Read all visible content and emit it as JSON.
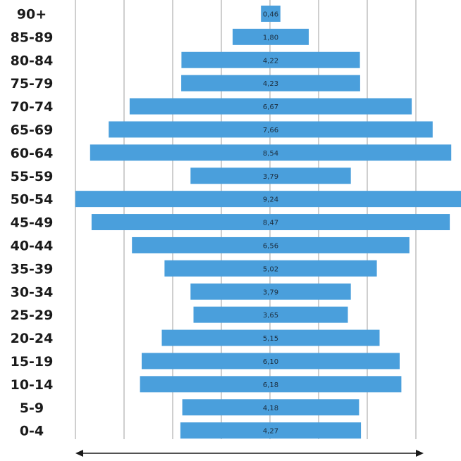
{
  "chart_data": {
    "type": "bar",
    "orientation": "horizontal-centered",
    "categories": [
      "90+",
      "85-89",
      "80-84",
      "75-79",
      "70-74",
      "65-69",
      "60-64",
      "55-59",
      "50-54",
      "45-49",
      "40-44",
      "35-39",
      "30-34",
      "25-29",
      "20-24",
      "15-19",
      "10-14",
      "5-9",
      "0-4"
    ],
    "values": [
      0.46,
      1.8,
      4.22,
      4.23,
      6.67,
      7.66,
      8.54,
      3.79,
      9.24,
      8.47,
      6.56,
      5.02,
      3.79,
      3.65,
      5.15,
      6.1,
      6.18,
      4.18,
      4.27
    ],
    "value_labels": [
      "0,46",
      "1,80",
      "4,22",
      "4,23",
      "6,67",
      "7,66",
      "8,54",
      "3,79",
      "9,24",
      "8,47",
      "6,56",
      "5,02",
      "3,79",
      "3,65",
      "5,15",
      "6,10",
      "6,18",
      "4,18",
      "4,27"
    ],
    "title": "",
    "xlabel": "",
    "ylabel": "",
    "grid": true,
    "legend": "none",
    "bar_color": "#4a9fdc",
    "grid_color": "#cfcfcf"
  }
}
